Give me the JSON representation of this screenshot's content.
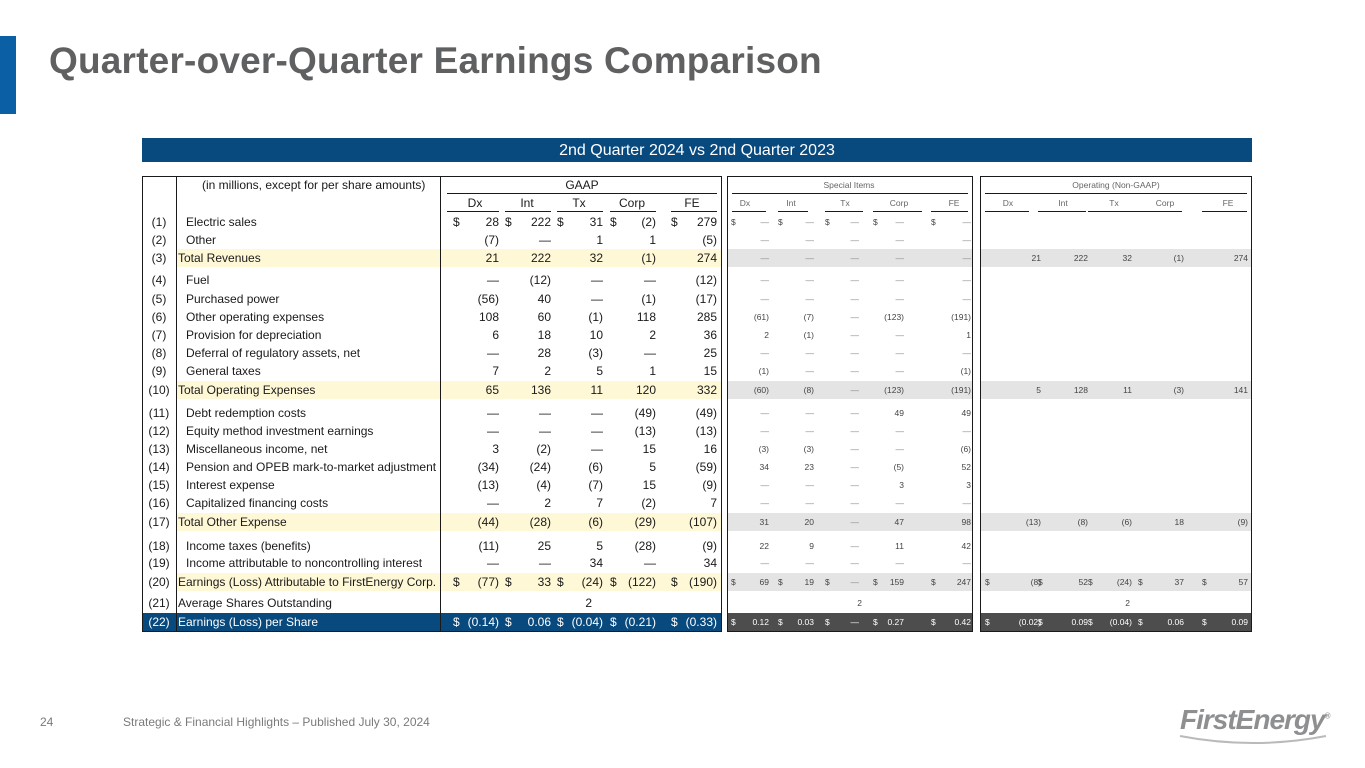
{
  "title": "Quarter-over-Quarter Earnings Comparison",
  "subtitle": "2nd Quarter 2024 vs 2nd Quarter 2023",
  "units_note": "(in millions, except for per share amounts)",
  "groups": {
    "gaap": "GAAP",
    "special": "Special Items",
    "operating": "Operating (Non-GAAP)"
  },
  "columns": [
    "Dx",
    "Int",
    "Tx",
    "Corp",
    "FE"
  ],
  "rows": [
    {
      "line": "(1)",
      "label": "Electric sales",
      "gaap": [
        "28",
        "222",
        "31",
        "(2)",
        "279"
      ],
      "special": [
        "—",
        "—",
        "—",
        "—",
        "—"
      ],
      "operating": [
        "",
        "",
        "",
        "",
        ""
      ]
    },
    {
      "line": "(2)",
      "label": "Other",
      "gaap": [
        "(7)",
        "—",
        "1",
        "1",
        "(5)"
      ],
      "special": [
        "—",
        "—",
        "—",
        "—",
        "—"
      ],
      "operating": [
        "",
        "",
        "",
        "",
        ""
      ]
    },
    {
      "line": "(3)",
      "label": "Total Revenues",
      "gaap": [
        "21",
        "222",
        "32",
        "(1)",
        "274"
      ],
      "special": [
        "—",
        "—",
        "—",
        "—",
        "—"
      ],
      "operating": [
        "21",
        "222",
        "32",
        "(1)",
        "274"
      ]
    },
    {
      "line": "(4)",
      "label": "Fuel",
      "gaap": [
        "—",
        "(12)",
        "—",
        "—",
        "(12)"
      ],
      "special": [
        "—",
        "—",
        "—",
        "—",
        "—"
      ],
      "operating": [
        "",
        "",
        "",
        "",
        ""
      ]
    },
    {
      "line": "(5)",
      "label": "Purchased power",
      "gaap": [
        "(56)",
        "40",
        "—",
        "(1)",
        "(17)"
      ],
      "special": [
        "—",
        "—",
        "—",
        "—",
        "—"
      ],
      "operating": [
        "",
        "",
        "",
        "",
        ""
      ]
    },
    {
      "line": "(6)",
      "label": "Other operating expenses",
      "gaap": [
        "108",
        "60",
        "(1)",
        "118",
        "285"
      ],
      "special": [
        "(61)",
        "(7)",
        "—",
        "(123)",
        "(191)"
      ],
      "operating": [
        "",
        "",
        "",
        "",
        ""
      ]
    },
    {
      "line": "(7)",
      "label": "Provision for depreciation",
      "gaap": [
        "6",
        "18",
        "10",
        "2",
        "36"
      ],
      "special": [
        "2",
        "(1)",
        "—",
        "—",
        "1"
      ],
      "operating": [
        "",
        "",
        "",
        "",
        ""
      ]
    },
    {
      "line": "(8)",
      "label": "Deferral of regulatory assets, net",
      "gaap": [
        "—",
        "28",
        "(3)",
        "—",
        "25"
      ],
      "special": [
        "—",
        "—",
        "—",
        "—",
        "—"
      ],
      "operating": [
        "",
        "",
        "",
        "",
        ""
      ]
    },
    {
      "line": "(9)",
      "label": "General taxes",
      "gaap": [
        "7",
        "2",
        "5",
        "1",
        "15"
      ],
      "special": [
        "(1)",
        "—",
        "—",
        "—",
        "(1)"
      ],
      "operating": [
        "",
        "",
        "",
        "",
        ""
      ]
    },
    {
      "line": "(10)",
      "label": "Total Operating Expenses",
      "gaap": [
        "65",
        "136",
        "11",
        "120",
        "332"
      ],
      "special": [
        "(60)",
        "(8)",
        "—",
        "(123)",
        "(191)"
      ],
      "operating": [
        "5",
        "128",
        "11",
        "(3)",
        "141"
      ]
    },
    {
      "line": "(11)",
      "label": "Debt redemption costs",
      "gaap": [
        "—",
        "—",
        "—",
        "(49)",
        "(49)"
      ],
      "special": [
        "—",
        "—",
        "—",
        "49",
        "49"
      ],
      "operating": [
        "",
        "",
        "",
        "",
        ""
      ]
    },
    {
      "line": "(12)",
      "label": "Equity method investment earnings",
      "gaap": [
        "—",
        "—",
        "—",
        "(13)",
        "(13)"
      ],
      "special": [
        "—",
        "—",
        "—",
        "—",
        "—"
      ],
      "operating": [
        "",
        "",
        "",
        "",
        ""
      ]
    },
    {
      "line": "(13)",
      "label": "Miscellaneous income, net",
      "gaap": [
        "3",
        "(2)",
        "—",
        "15",
        "16"
      ],
      "special": [
        "(3)",
        "(3)",
        "—",
        "—",
        "(6)"
      ],
      "operating": [
        "",
        "",
        "",
        "",
        ""
      ]
    },
    {
      "line": "(14)",
      "label": "Pension and OPEB mark-to-market adjustment",
      "gaap": [
        "(34)",
        "(24)",
        "(6)",
        "5",
        "(59)"
      ],
      "special": [
        "34",
        "23",
        "—",
        "(5)",
        "52"
      ],
      "operating": [
        "",
        "",
        "",
        "",
        ""
      ]
    },
    {
      "line": "(15)",
      "label": "Interest expense",
      "gaap": [
        "(13)",
        "(4)",
        "(7)",
        "15",
        "(9)"
      ],
      "special": [
        "—",
        "—",
        "—",
        "3",
        "3"
      ],
      "operating": [
        "",
        "",
        "",
        "",
        ""
      ]
    },
    {
      "line": "(16)",
      "label": "Capitalized financing costs",
      "gaap": [
        "—",
        "2",
        "7",
        "(2)",
        "7"
      ],
      "special": [
        "—",
        "—",
        "—",
        "—",
        "—"
      ],
      "operating": [
        "",
        "",
        "",
        "",
        ""
      ]
    },
    {
      "line": "(17)",
      "label": "Total Other Expense",
      "gaap": [
        "(44)",
        "(28)",
        "(6)",
        "(29)",
        "(107)"
      ],
      "special": [
        "31",
        "20",
        "—",
        "47",
        "98"
      ],
      "operating": [
        "(13)",
        "(8)",
        "(6)",
        "18",
        "(9)"
      ]
    },
    {
      "line": "(18)",
      "label": "Income taxes (benefits)",
      "gaap": [
        "(11)",
        "25",
        "5",
        "(28)",
        "(9)"
      ],
      "special": [
        "22",
        "9",
        "—",
        "11",
        "42"
      ],
      "operating": [
        "",
        "",
        "",
        "",
        ""
      ]
    },
    {
      "line": "(19)",
      "label": "Income attributable to noncontrolling interest",
      "gaap": [
        "—",
        "—",
        "34",
        "—",
        "34"
      ],
      "special": [
        "—",
        "—",
        "—",
        "—",
        "—"
      ],
      "operating": [
        "",
        "",
        "",
        "",
        ""
      ]
    },
    {
      "line": "(20)",
      "label": "Earnings (Loss) Attributable to FirstEnergy Corp.",
      "gaap": [
        "(77)",
        "33",
        "(24)",
        "(122)",
        "(190)"
      ],
      "special": [
        "69",
        "19",
        "—",
        "159",
        "247"
      ],
      "operating": [
        "(8)",
        "52",
        "(24)",
        "37",
        "57"
      ]
    },
    {
      "line": "(21)",
      "label": "Average Shares Outstanding",
      "gaap_shares": "2",
      "special_shares": "2",
      "operating_shares": "2"
    },
    {
      "line": "(22)",
      "label": "Earnings (Loss) per Share",
      "gaap": [
        "(0.14)",
        "0.06",
        "(0.04)",
        "(0.21)",
        "(0.33)"
      ],
      "special": [
        "0.12",
        "0.03",
        "—",
        "0.27",
        "0.42"
      ],
      "operating": [
        "(0.02)",
        "0.09",
        "(0.04)",
        "0.06",
        "0.09"
      ]
    }
  ],
  "dollar_sign": "$",
  "footer": {
    "page_number": "24",
    "text": "Strategic & Financial Highlights – Published July 30, 2024"
  },
  "logo": {
    "text": "FirstEnergy",
    "mark": "®"
  },
  "colors": {
    "accent": "#0b5fa5",
    "navy": "#08497e",
    "total_highlight": "#fff8d6",
    "grey_band": "#e4e4e4"
  }
}
